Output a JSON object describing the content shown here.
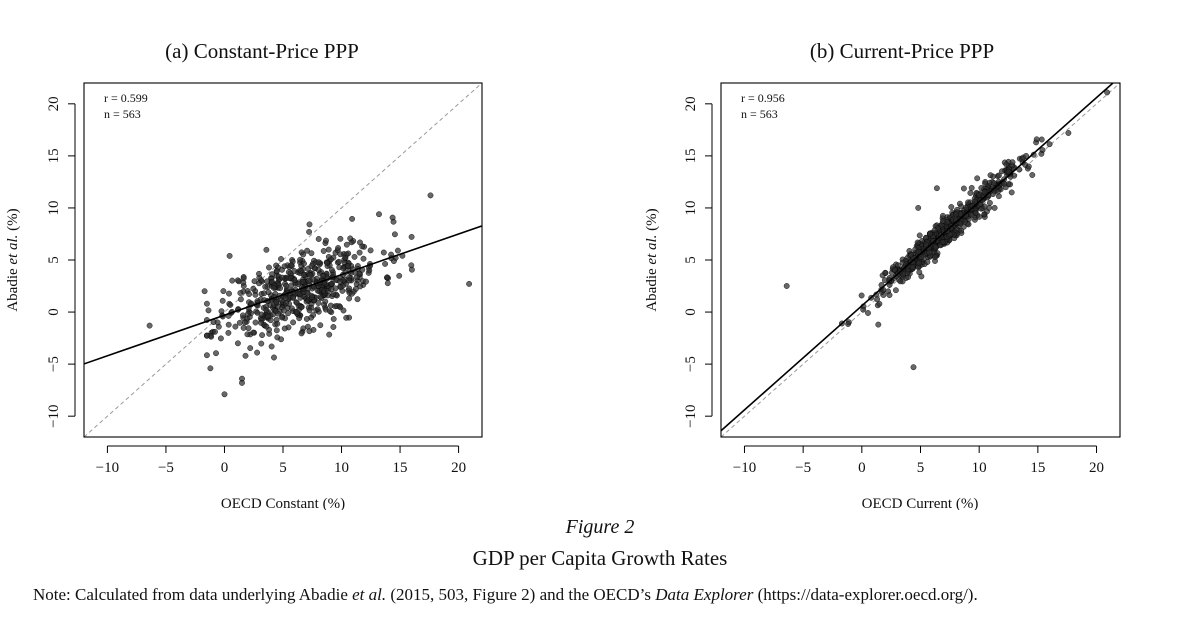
{
  "figure": {
    "label": "Figure 2",
    "title": "GDP per Capita Growth Rates",
    "note": {
      "prefix": "Note: Calculated from data underlying Abadie ",
      "etal": "et al.",
      "middle": " (2015, 503, Figure 2) and the OECD’s ",
      "italic_source": "Data Explorer",
      "suffix": " (https://data-explorer.oecd.org/)."
    }
  },
  "chart_data": [
    {
      "type": "scatter",
      "title": "(a) Constant-Price PPP",
      "xlabel": "OECD Constant (%)",
      "ylabel_prefix": "Abadie ",
      "ylabel_italic": "et al.",
      "ylabel_suffix": " (%)",
      "xlim": [
        -12,
        22
      ],
      "ylim": [
        -12,
        22
      ],
      "xticks": [
        -10,
        -5,
        0,
        5,
        10,
        15,
        20
      ],
      "yticks": [
        -10,
        -5,
        0,
        5,
        10,
        15,
        20
      ],
      "stats": {
        "r_label": "r = 0.599",
        "n_label": "n = 563"
      },
      "fit_line": {
        "slope": 0.39,
        "intercept": -0.3
      },
      "reference_line": "y = x (dashed)",
      "points_generator": {
        "seed": 11,
        "n": 563,
        "x_mean": 6.5,
        "x_sd": 3.4,
        "slope": 0.39,
        "intercept": -0.3,
        "noise_sd": 1.9
      },
      "notable_points": [
        {
          "x": -6.4,
          "y": -1.3
        },
        {
          "x": -1.7,
          "y": 2.0
        },
        {
          "x": -1.2,
          "y": -5.4
        },
        {
          "x": 0.0,
          "y": -7.9
        },
        {
          "x": 1.5,
          "y": -6.4
        },
        {
          "x": 1.5,
          "y": -6.8
        },
        {
          "x": 1.8,
          "y": -4.2
        },
        {
          "x": 17.6,
          "y": 11.2
        },
        {
          "x": 20.9,
          "y": 2.7
        },
        {
          "x": 13.2,
          "y": 9.4
        },
        {
          "x": 15.2,
          "y": 5.4
        }
      ]
    },
    {
      "type": "scatter",
      "title": "(b) Current-Price PPP",
      "xlabel": "OECD Current (%)",
      "ylabel_prefix": "Abadie ",
      "ylabel_italic": "et al.",
      "ylabel_suffix": " (%)",
      "xlim": [
        -12,
        22
      ],
      "ylim": [
        -12,
        22
      ],
      "xticks": [
        -10,
        -5,
        0,
        5,
        10,
        15,
        20
      ],
      "yticks": [
        -10,
        -5,
        0,
        5,
        10,
        15,
        20
      ],
      "stats": {
        "r_label": "r = 0.956",
        "n_label": "n = 563"
      },
      "fit_line": {
        "slope": 1.0,
        "intercept": 0.6
      },
      "reference_line": "y = x (dashed)",
      "points_generator": {
        "seed": 29,
        "n": 563,
        "x_mean": 7.2,
        "x_sd": 3.1,
        "slope": 1.0,
        "intercept": 0.6,
        "noise_sd": 0.75
      },
      "notable_points": [
        {
          "x": -6.4,
          "y": 2.5
        },
        {
          "x": 4.4,
          "y": -5.3
        },
        {
          "x": 20.9,
          "y": 21.1
        },
        {
          "x": 17.6,
          "y": 17.2
        },
        {
          "x": 15.3,
          "y": 15.2
        },
        {
          "x": -1.7,
          "y": -1.1
        },
        {
          "x": 1.4,
          "y": -1.2
        },
        {
          "x": 6.4,
          "y": 11.9
        },
        {
          "x": 4.8,
          "y": 10.0
        }
      ]
    }
  ]
}
